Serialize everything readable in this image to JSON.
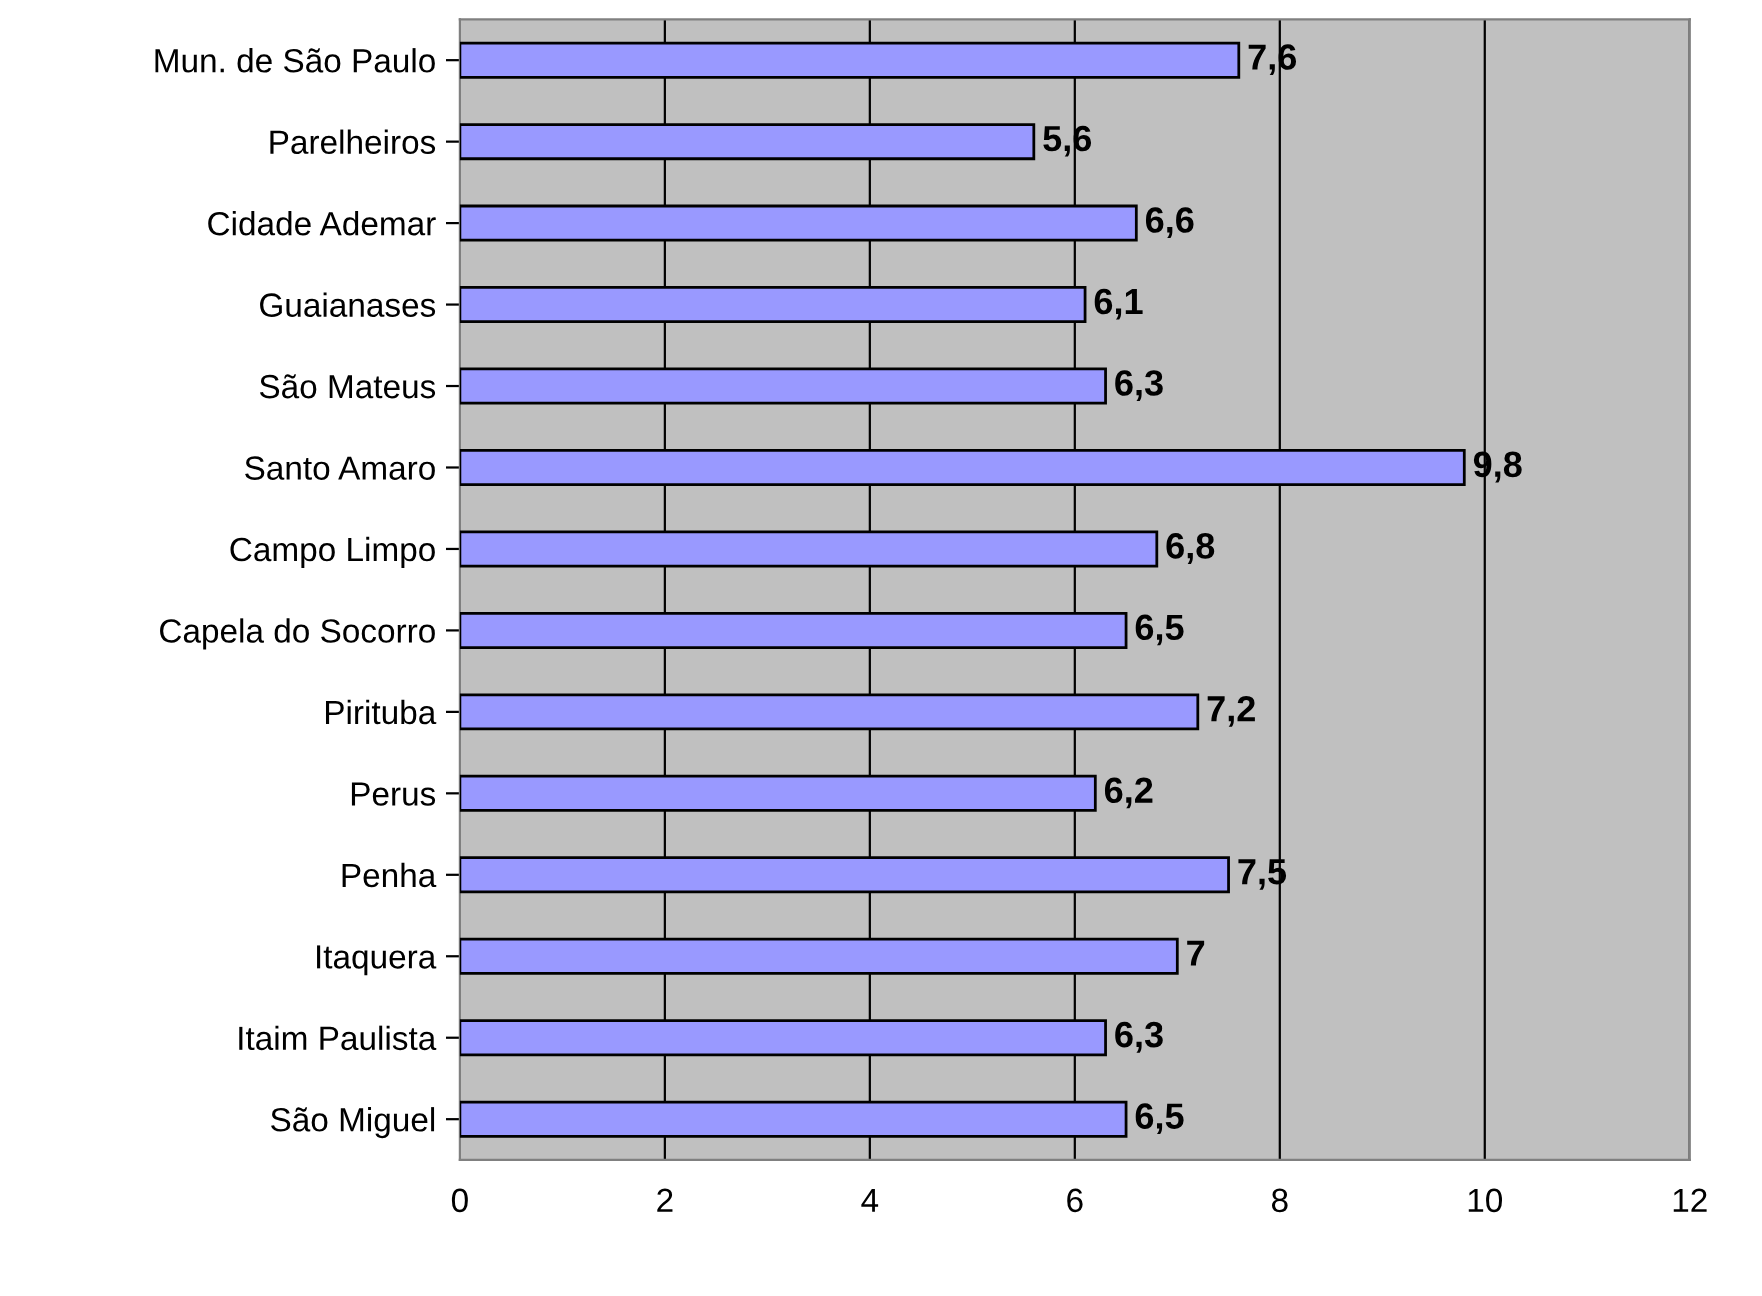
{
  "chart_data": {
    "type": "bar",
    "orientation": "horizontal",
    "categories": [
      "Mun. de São Paulo",
      "Parelheiros",
      "Cidade Ademar",
      "Guaianases",
      "São Mateus",
      "Santo Amaro",
      "Campo Limpo",
      "Capela do Socorro",
      "Pirituba",
      "Perus",
      "Penha",
      "Itaquera",
      "Itaim Paulista",
      "São Miguel"
    ],
    "values": [
      7.6,
      5.6,
      6.6,
      6.1,
      6.3,
      9.8,
      6.8,
      6.5,
      7.2,
      6.2,
      7.5,
      7.0,
      6.3,
      6.5
    ],
    "value_labels": [
      "7,6",
      "5,6",
      "6,6",
      "6,1",
      "6,3",
      "9,8",
      "6,8",
      "6,5",
      "7,2",
      "6,2",
      "7,5",
      "7",
      "6,3",
      "6,5"
    ],
    "color": "#9999ff",
    "xlim": [
      0,
      12
    ],
    "xticks": [
      0,
      2,
      4,
      6,
      8,
      10,
      12
    ],
    "grid": "x",
    "legend": false
  }
}
